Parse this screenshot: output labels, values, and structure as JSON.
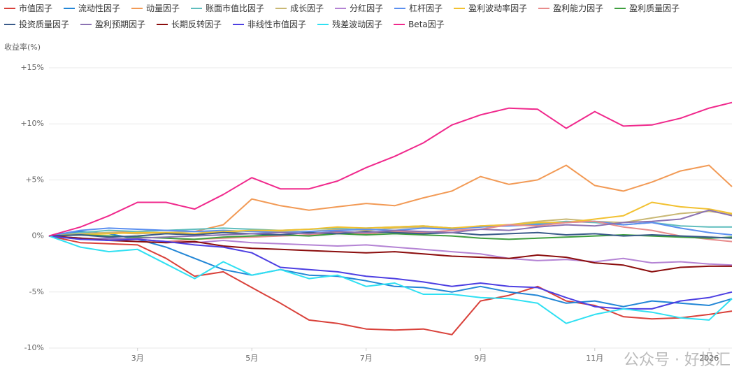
{
  "chart_data": {
    "type": "line",
    "y_axis_label": "收益率(%)",
    "watermark": "公众号 · 好投汇",
    "grid": true,
    "x": [
      1.45,
      2,
      2.5,
      3,
      3.5,
      4,
      4.5,
      5,
      5.5,
      6,
      6.5,
      7,
      7.5,
      8,
      8.5,
      9,
      9.5,
      10,
      10.5,
      11,
      11.5,
      12,
      12.5,
      13,
      13.4
    ],
    "xlim": [
      1.45,
      13.4
    ],
    "xticks": [
      {
        "value": 3,
        "label": "3月"
      },
      {
        "value": 5,
        "label": "5月"
      },
      {
        "value": 7,
        "label": "7月"
      },
      {
        "value": 9,
        "label": "9月"
      },
      {
        "value": 11,
        "label": "11月"
      },
      {
        "value": 13,
        "label": "2026"
      }
    ],
    "ylim": [
      -10,
      15
    ],
    "yticks": [
      {
        "value": 15,
        "label": "+15%"
      },
      {
        "value": 10,
        "label": "+10%"
      },
      {
        "value": 5,
        "label": "+5%"
      },
      {
        "value": 0,
        "label": "0%"
      },
      {
        "value": -5,
        "label": "-5%"
      },
      {
        "value": -10,
        "label": "-10%"
      }
    ],
    "series": [
      {
        "name": "市值因子",
        "color": "#d9413a",
        "values": [
          0,
          -0.6,
          -0.7,
          -0.8,
          -2.0,
          -3.6,
          -3.2,
          -4.6,
          -6.0,
          -7.5,
          -7.8,
          -8.3,
          -8.4,
          -8.3,
          -8.8,
          -5.8,
          -5.3,
          -4.5,
          -5.8,
          -6.2,
          -7.2,
          -7.4,
          -7.3,
          -7.0,
          -6.7
        ]
      },
      {
        "name": "流动性因子",
        "color": "#2286d6",
        "values": [
          0,
          0.4,
          0.2,
          -0.3,
          -1.0,
          -2.0,
          -3.0,
          -3.5,
          -3.0,
          -3.5,
          -3.6,
          -4.0,
          -4.5,
          -4.6,
          -5.0,
          -4.5,
          -5.0,
          -5.3,
          -6.0,
          -5.8,
          -6.3,
          -5.8,
          -6.0,
          -6.2,
          -5.6
        ]
      },
      {
        "name": "动量因子",
        "color": "#f29a55",
        "values": [
          0,
          0.2,
          0.3,
          0.4,
          0.5,
          0.4,
          1.0,
          3.3,
          2.7,
          2.3,
          2.6,
          2.9,
          2.7,
          3.4,
          4.0,
          5.3,
          4.6,
          5.0,
          6.3,
          4.5,
          4.0,
          4.8,
          5.8,
          6.3,
          4.4
        ]
      },
      {
        "name": "账面市值比因子",
        "color": "#5fbdbd",
        "values": [
          0,
          0.3,
          0.5,
          0.4,
          0.5,
          0.6,
          0.7,
          0.6,
          0.5,
          0.6,
          0.7,
          0.7,
          0.8,
          0.9,
          0.7,
          0.8,
          1.0,
          1.1,
          1.3,
          1.2,
          1.0,
          1.2,
          0.9,
          0.8,
          0.8
        ]
      },
      {
        "name": "成长因子",
        "color": "#c9b874",
        "values": [
          0,
          0.2,
          0.3,
          0.2,
          0.3,
          0.4,
          0.3,
          0.5,
          0.4,
          0.4,
          0.6,
          0.5,
          0.7,
          0.8,
          0.6,
          0.9,
          1.0,
          1.3,
          1.5,
          1.3,
          1.2,
          1.6,
          2.0,
          2.2,
          1.9
        ]
      },
      {
        "name": "分红因子",
        "color": "#b483d4",
        "values": [
          0,
          -0.3,
          -0.2,
          -0.3,
          -0.5,
          -0.6,
          -0.4,
          -0.6,
          -0.7,
          -0.8,
          -0.9,
          -0.8,
          -1.0,
          -1.2,
          -1.4,
          -1.6,
          -2.0,
          -2.2,
          -2.1,
          -2.3,
          -2.0,
          -2.4,
          -2.3,
          -2.5,
          -2.6
        ]
      },
      {
        "name": "杠杆因子",
        "color": "#5b8ff0",
        "values": [
          0,
          0.5,
          0.7,
          0.6,
          0.5,
          0.4,
          0.5,
          0.4,
          0.3,
          0.4,
          0.5,
          0.6,
          0.5,
          0.7,
          0.6,
          0.8,
          0.9,
          1.0,
          1.2,
          1.3,
          1.0,
          1.2,
          0.7,
          0.3,
          0.1
        ]
      },
      {
        "name": "盈利波动率因子",
        "color": "#f2c130",
        "values": [
          0,
          0.1,
          0.2,
          0.3,
          0.3,
          0.2,
          0.4,
          0.5,
          0.5,
          0.6,
          0.8,
          0.7,
          0.8,
          0.9,
          0.7,
          0.9,
          1.0,
          1.2,
          1.2,
          1.5,
          1.8,
          3.0,
          2.6,
          2.4,
          2.0
        ]
      },
      {
        "name": "盈利能力因子",
        "color": "#e88c8c",
        "values": [
          0,
          -0.2,
          -0.4,
          -0.3,
          -0.5,
          -0.3,
          -0.2,
          -0.1,
          0.0,
          0.1,
          0.3,
          0.2,
          0.4,
          0.3,
          0.5,
          0.6,
          1.0,
          0.9,
          1.2,
          1.3,
          0.8,
          0.5,
          0.0,
          -0.3,
          -0.5
        ]
      },
      {
        "name": "盈利质量因子",
        "color": "#3f9f3f",
        "values": [
          0,
          0.1,
          0.0,
          -0.1,
          -0.2,
          -0.3,
          -0.1,
          0.0,
          0.1,
          0.0,
          0.2,
          0.1,
          0.2,
          0.1,
          0.0,
          -0.2,
          -0.3,
          -0.2,
          -0.1,
          0.0,
          0.1,
          0.0,
          -0.1,
          -0.2,
          -0.1
        ]
      },
      {
        "name": "投资质量因子",
        "color": "#3a5b8a",
        "values": [
          0,
          0.1,
          -0.1,
          0.0,
          0.2,
          0.1,
          0.3,
          0.2,
          0.1,
          0.3,
          0.2,
          0.4,
          0.3,
          0.2,
          0.3,
          0.1,
          0.2,
          0.3,
          0.1,
          0.2,
          0.0,
          0.1,
          0.0,
          -0.1,
          -0.2
        ]
      },
      {
        "name": "盈利预期因子",
        "color": "#8b72b2",
        "values": [
          0,
          -0.2,
          -0.3,
          -0.2,
          -0.1,
          0.0,
          0.1,
          0.2,
          0.3,
          0.2,
          0.4,
          0.3,
          0.5,
          0.4,
          0.3,
          0.6,
          0.5,
          0.8,
          1.0,
          0.9,
          1.2,
          1.3,
          1.5,
          2.3,
          1.8
        ]
      },
      {
        "name": "长期反转因子",
        "color": "#8b0d0d",
        "values": [
          0,
          -0.2,
          -0.4,
          -0.5,
          -0.6,
          -0.5,
          -0.9,
          -1.1,
          -1.2,
          -1.3,
          -1.4,
          -1.5,
          -1.4,
          -1.6,
          -1.8,
          -1.9,
          -2.0,
          -1.7,
          -1.9,
          -2.4,
          -2.6,
          -3.2,
          -2.8,
          -2.7,
          -2.7
        ]
      },
      {
        "name": "非线性市值因子",
        "color": "#4d3fe2",
        "values": [
          0,
          -0.3,
          -0.4,
          -0.3,
          -0.5,
          -0.8,
          -1.0,
          -1.5,
          -2.8,
          -3.0,
          -3.2,
          -3.6,
          -3.8,
          -4.1,
          -4.5,
          -4.2,
          -4.5,
          -4.6,
          -5.5,
          -6.3,
          -6.5,
          -6.5,
          -5.8,
          -5.5,
          -5.0
        ]
      },
      {
        "name": "残差波动因子",
        "color": "#2fe0f2",
        "values": [
          0,
          -1.0,
          -1.4,
          -1.2,
          -2.5,
          -3.8,
          -2.3,
          -3.5,
          -3.0,
          -3.8,
          -3.5,
          -4.5,
          -4.2,
          -5.2,
          -5.2,
          -5.5,
          -5.6,
          -6.0,
          -7.8,
          -7.0,
          -6.5,
          -6.8,
          -7.3,
          -7.5,
          -5.6
        ]
      },
      {
        "name": "Beta因子",
        "color": "#f0288c",
        "values": [
          0,
          0.8,
          1.8,
          3.0,
          3.0,
          2.4,
          3.7,
          5.2,
          4.2,
          4.2,
          4.9,
          6.1,
          7.1,
          8.3,
          9.9,
          10.8,
          11.4,
          11.3,
          9.6,
          11.1,
          9.8,
          9.9,
          10.5,
          11.4,
          11.9
        ]
      }
    ]
  }
}
